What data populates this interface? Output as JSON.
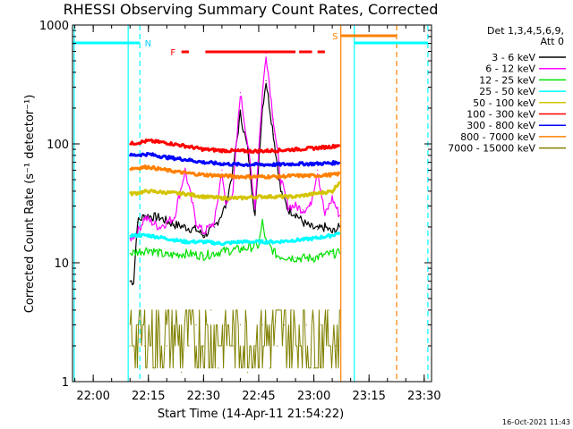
{
  "chart_data": {
    "type": "line",
    "title": "RHESSI Observing Summary Count Rates, Corrected",
    "xlabel": "Start Time (14-Apr-11 21:54:22)",
    "ylabel": "Corrected Count Rate (s⁻¹ detector⁻¹)",
    "yscale": "log",
    "ylim": [
      1,
      1000
    ],
    "xlim": [
      "21:54:22",
      "23:32:00"
    ],
    "x_ticks": [
      "22:00",
      "22:15",
      "22:30",
      "22:45",
      "23:00",
      "23:15",
      "23:30"
    ],
    "y_ticks": [
      "1",
      "10",
      "100",
      "1000"
    ],
    "grid": false,
    "legend_placement": "right",
    "legend_header": [
      "Det 1,3,4,5,6,9,",
      "Att 0"
    ],
    "date_stamp": "16-Oct-2021 11:43",
    "series": [
      {
        "name": "3 - 6 keV",
        "color": "#000000",
        "x": [
          "22:10",
          "22:11",
          "22:12",
          "22:14",
          "22:18",
          "22:22",
          "22:25",
          "22:28",
          "22:30",
          "22:33",
          "22:36",
          "22:38",
          "22:40",
          "22:42",
          "22:44",
          "22:46",
          "22:47",
          "22:49",
          "22:51",
          "22:53",
          "22:55",
          "22:57",
          "22:59",
          "23:01",
          "23:03",
          "23:05",
          "23:07"
        ],
        "values": [
          7,
          7,
          22,
          25,
          24,
          21,
          20,
          19,
          17,
          20,
          30,
          60,
          180,
          90,
          25,
          200,
          340,
          120,
          40,
          28,
          26,
          22,
          20,
          19,
          20,
          18,
          20
        ]
      },
      {
        "name": "6 - 12 keV",
        "color": "#ff00ff",
        "x": [
          "22:10",
          "22:12",
          "22:14",
          "22:18",
          "22:22",
          "22:25",
          "22:28",
          "22:30",
          "22:33",
          "22:35",
          "22:36",
          "22:38",
          "22:40",
          "22:42",
          "22:44",
          "22:46",
          "22:47",
          "22:49",
          "22:51",
          "22:53",
          "22:55",
          "22:57",
          "22:59",
          "23:01",
          "23:03",
          "23:05",
          "23:07"
        ],
        "values": [
          16,
          18,
          24,
          20,
          24,
          60,
          22,
          18,
          22,
          60,
          30,
          40,
          270,
          100,
          30,
          260,
          580,
          160,
          50,
          30,
          30,
          28,
          30,
          60,
          25,
          35,
          25
        ]
      },
      {
        "name": "12 - 25 keV",
        "color": "#00e000",
        "x": [
          "22:10",
          "22:15",
          "22:20",
          "22:25",
          "22:30",
          "22:35",
          "22:40",
          "22:45",
          "22:46",
          "22:47",
          "22:50",
          "22:55",
          "23:00",
          "23:05",
          "23:07"
        ],
        "values": [
          12,
          13,
          11.5,
          12,
          11.5,
          12.5,
          13,
          14,
          22,
          15,
          11.5,
          11,
          11,
          12,
          12
        ]
      },
      {
        "name": "25 - 50 keV",
        "color": "#00ffff",
        "x": [
          "22:10",
          "22:15",
          "22:20",
          "22:25",
          "22:30",
          "22:35",
          "22:40",
          "22:45",
          "22:50",
          "22:55",
          "23:00",
          "23:05",
          "23:07"
        ],
        "values": [
          17,
          17,
          16,
          15,
          15,
          14.5,
          15,
          15,
          15,
          15.5,
          16,
          17,
          18
        ]
      },
      {
        "name": "50 - 100 keV",
        "color": "#d4c400",
        "x": [
          "22:10",
          "22:15",
          "22:20",
          "22:25",
          "22:30",
          "22:35",
          "22:40",
          "22:45",
          "22:50",
          "22:55",
          "23:00",
          "23:05",
          "23:07"
        ],
        "values": [
          38,
          40,
          39,
          38,
          36,
          35,
          35,
          36,
          36,
          36,
          38,
          40,
          48
        ]
      },
      {
        "name": "100 - 300 keV",
        "color": "#ff0000",
        "x": [
          "22:10",
          "22:15",
          "22:20",
          "22:25",
          "22:30",
          "22:35",
          "22:40",
          "22:45",
          "22:50",
          "22:55",
          "23:00",
          "23:05",
          "23:07"
        ],
        "values": [
          100,
          106,
          102,
          96,
          90,
          88,
          87,
          87,
          88,
          90,
          92,
          95,
          98
        ]
      },
      {
        "name": "300 - 800 keV",
        "color": "#0000ff",
        "x": [
          "22:10",
          "22:15",
          "22:20",
          "22:25",
          "22:30",
          "22:35",
          "22:40",
          "22:45",
          "22:50",
          "22:55",
          "23:00",
          "23:05",
          "23:07"
        ],
        "values": [
          80,
          82,
          77,
          74,
          70,
          68,
          67,
          67,
          67,
          68,
          68,
          69,
          70
        ]
      },
      {
        "name": "800 - 7000 keV",
        "color": "#ff8000",
        "x": [
          "22:10",
          "22:15",
          "22:20",
          "22:25",
          "22:30",
          "22:35",
          "22:40",
          "22:45",
          "22:50",
          "22:55",
          "23:00",
          "23:05",
          "23:07"
        ],
        "values": [
          62,
          64,
          60,
          57,
          55,
          54,
          53,
          53,
          53,
          54,
          54,
          55,
          56
        ]
      },
      {
        "name": "7000 - 15000 keV",
        "color": "#808000",
        "x": [
          "22:10",
          "22:12",
          "22:14",
          "22:16",
          "22:18",
          "22:20",
          "22:22",
          "22:24",
          "22:26",
          "22:28",
          "22:30",
          "22:32",
          "22:34",
          "22:36",
          "22:38",
          "22:40",
          "22:42",
          "22:44",
          "22:46",
          "22:48",
          "22:50",
          "22:52",
          "22:54",
          "22:56",
          "22:58",
          "23:00",
          "23:02",
          "23:04",
          "23:06",
          "23:07"
        ],
        "values": [
          2,
          3,
          2,
          4,
          3,
          2,
          3,
          1.2,
          2,
          3,
          2,
          4,
          1.3,
          3,
          2,
          3,
          1.2,
          2,
          3,
          1.3,
          2,
          3,
          4,
          2,
          3,
          1.3,
          3,
          4,
          2,
          4
        ]
      }
    ],
    "annotations": [
      {
        "text": "N",
        "color": "#00d0ff"
      },
      {
        "text": "F",
        "color": "#ff0000"
      },
      {
        "text": "S",
        "color": "#ff8000"
      }
    ]
  },
  "colors": {
    "night": "#00ffff",
    "saa": "#ff8000",
    "flare": "#ff0000"
  }
}
